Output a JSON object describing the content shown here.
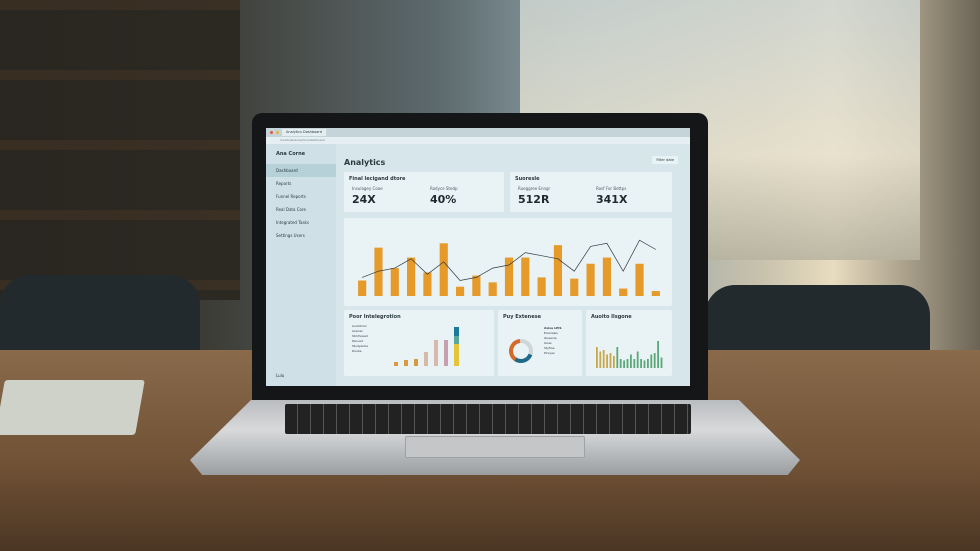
{
  "browser": {
    "tab_title": "Analytics Dashboard",
    "url": "localhost/analytics/dashboard"
  },
  "sidebar": {
    "brand": "Ana Corne",
    "items": [
      {
        "label": "Dashboard"
      },
      {
        "label": "Reports"
      },
      {
        "label": "Funnel Reports"
      },
      {
        "label": "Real Data Core"
      },
      {
        "label": "Integrated Tasks"
      },
      {
        "label": "Settings Users"
      }
    ],
    "user": "Lulu"
  },
  "main": {
    "title": "Analytics",
    "toolbar_filter": "Filter date",
    "card1": {
      "title": "Final lecigand dtore",
      "kpis": [
        {
          "label": "Insulagey Cooe",
          "value": "24X"
        },
        {
          "label": "Rodyce Stedp",
          "value": "40%"
        }
      ]
    },
    "card2": {
      "title": "Suoresle",
      "kpis": [
        {
          "label": "Rueggree Enngr",
          "value": "512R"
        },
        {
          "label": "Rosf For Bettps",
          "value": "341X"
        }
      ]
    },
    "card3": {
      "title": "Poor Intelegrotion",
      "legend": [
        "Audiotrior",
        "Areinal",
        "Strirfsread",
        "Pecued",
        "Studyanlie",
        "Dooke"
      ]
    },
    "card4": {
      "title": "Puy Extenese",
      "legend_title": "Axisu LEIS",
      "legend": [
        "Ereroasis",
        "Queenie",
        "Ooes",
        "Styfine",
        "Pircyes"
      ]
    },
    "card5": {
      "title": "Auoito Ilsgone"
    }
  },
  "chart_data": {
    "type": "bar",
    "bar_color": "#e59a2a",
    "line_color": "#2e3b40",
    "values": [
      0.25,
      0.78,
      0.45,
      0.62,
      0.38,
      0.85,
      0.15,
      0.33,
      0.22,
      0.62,
      0.62,
      0.3,
      0.82,
      0.28,
      0.52,
      0.62,
      0.12,
      0.52,
      0.08
    ],
    "line": [
      0.3,
      0.4,
      0.45,
      0.6,
      0.35,
      0.55,
      0.25,
      0.3,
      0.45,
      0.5,
      0.7,
      0.65,
      0.6,
      0.4,
      0.8,
      0.85,
      0.4,
      0.9,
      0.75
    ]
  }
}
